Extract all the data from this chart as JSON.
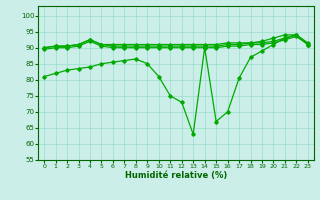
{
  "title": "",
  "xlabel": "Humidité relative (%)",
  "background_color": "#cceee8",
  "grid_color": "#99ddcc",
  "line_color": "#00aa00",
  "xlim": [
    -0.5,
    23.5
  ],
  "ylim": [
    55,
    103
  ],
  "yticks": [
    55,
    60,
    65,
    70,
    75,
    80,
    85,
    90,
    95,
    100
  ],
  "xticks": [
    0,
    1,
    2,
    3,
    4,
    5,
    6,
    7,
    8,
    9,
    10,
    11,
    12,
    13,
    14,
    15,
    16,
    17,
    18,
    19,
    20,
    21,
    22,
    23
  ],
  "s1": [
    81,
    82,
    83,
    83.5,
    84,
    85,
    85.5,
    86,
    86.5,
    85,
    81,
    75,
    73,
    63,
    90,
    67,
    70,
    80.5,
    87,
    89,
    91,
    93,
    94,
    91
  ],
  "s2": [
    90,
    90.5,
    90.5,
    91,
    92.5,
    91,
    91,
    91,
    91,
    91,
    91,
    91,
    91,
    91,
    91,
    91,
    91.5,
    91.5,
    91.5,
    92,
    93,
    94,
    94,
    91.5
  ],
  "s3": [
    90,
    90.5,
    90.5,
    91,
    92.5,
    91,
    90.5,
    90.5,
    90.5,
    90.5,
    90.5,
    90.5,
    90.5,
    90.5,
    90.5,
    90.5,
    91,
    91,
    91.5,
    91.5,
    92,
    93,
    94,
    91
  ],
  "s4": [
    89.5,
    90,
    90,
    90.5,
    92,
    90.5,
    90,
    90,
    90,
    90,
    90,
    90,
    90,
    90,
    90,
    90,
    90.5,
    90.5,
    91,
    91,
    91.5,
    92.5,
    93.5,
    91
  ]
}
